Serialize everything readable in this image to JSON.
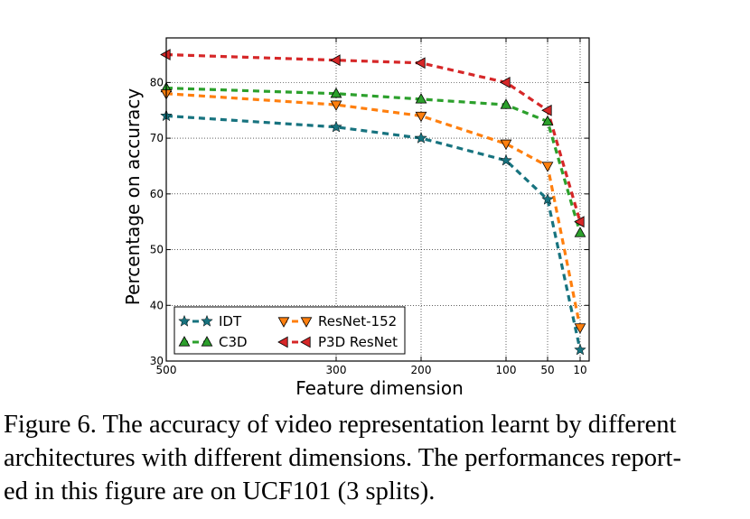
{
  "chart_data": {
    "type": "line",
    "xlabel": "Feature dimension",
    "ylabel": "Percentage on accuracy",
    "ylim": [
      30,
      88
    ],
    "yticks": [
      30,
      40,
      50,
      60,
      70,
      80
    ],
    "x_categories": [
      "500",
      "300",
      "200",
      "100",
      "50",
      "10"
    ],
    "grid": true,
    "legend_position": "bottom-left",
    "series": [
      {
        "name": "IDT",
        "color": "#17737f",
        "marker": "star",
        "values": [
          74,
          72,
          70,
          66,
          59,
          32
        ]
      },
      {
        "name": "C3D",
        "color": "#2ca02c",
        "marker": "triangle-up",
        "values": [
          79,
          78,
          77,
          76,
          73,
          53
        ]
      },
      {
        "name": "ResNet-152",
        "color": "#ff7f0e",
        "marker": "triangle-down",
        "values": [
          78,
          76,
          74,
          69,
          65,
          36
        ]
      },
      {
        "name": "P3D ResNet",
        "color": "#d62728",
        "marker": "triangle-left",
        "values": [
          85,
          84,
          83.5,
          80,
          75,
          55
        ]
      }
    ]
  },
  "caption": {
    "line1": "Figure 6. The accuracy of video representation learnt by different",
    "line2": "architectures with different dimensions. The performances report-",
    "line3": "ed in this figure are on UCF101 (3 splits)."
  }
}
